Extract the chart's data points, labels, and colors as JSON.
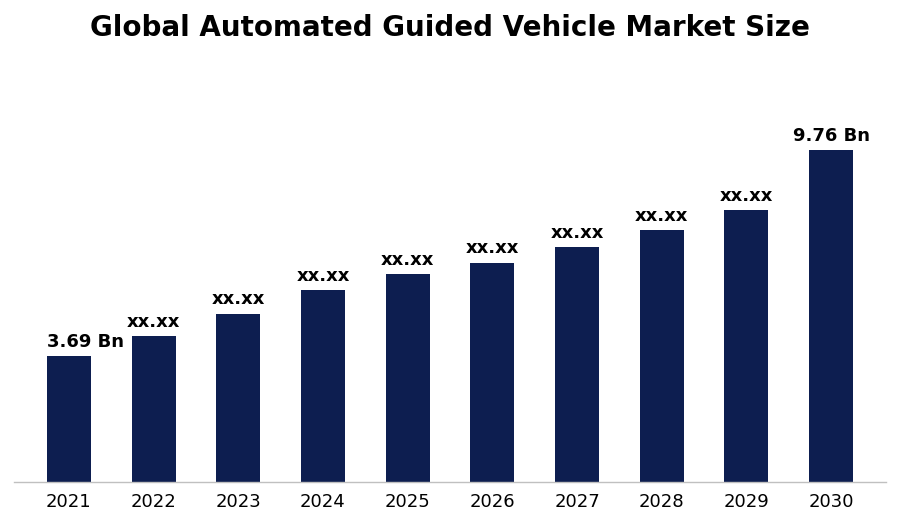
{
  "title": "Global Automated Guided Vehicle Market Size",
  "categories": [
    "2021",
    "2022",
    "2023",
    "2024",
    "2025",
    "2026",
    "2027",
    "2028",
    "2029",
    "2030"
  ],
  "values": [
    3.69,
    4.3,
    4.95,
    5.65,
    6.1,
    6.45,
    6.9,
    7.4,
    8.0,
    9.76
  ],
  "bar_color": "#0d1e50",
  "labels": [
    "3.69 Bn",
    "xx.xx",
    "xx.xx",
    "xx.xx",
    "xx.xx",
    "xx.xx",
    "xx.xx",
    "xx.xx",
    "xx.xx",
    "9.76 Bn"
  ],
  "label_align": [
    "left",
    "center",
    "center",
    "center",
    "center",
    "center",
    "center",
    "center",
    "center",
    "center"
  ],
  "title_fontsize": 20,
  "label_fontsize": 13,
  "tick_fontsize": 13,
  "background_color": "#ffffff",
  "ylim": [
    0,
    12.5
  ],
  "bar_width": 0.52
}
